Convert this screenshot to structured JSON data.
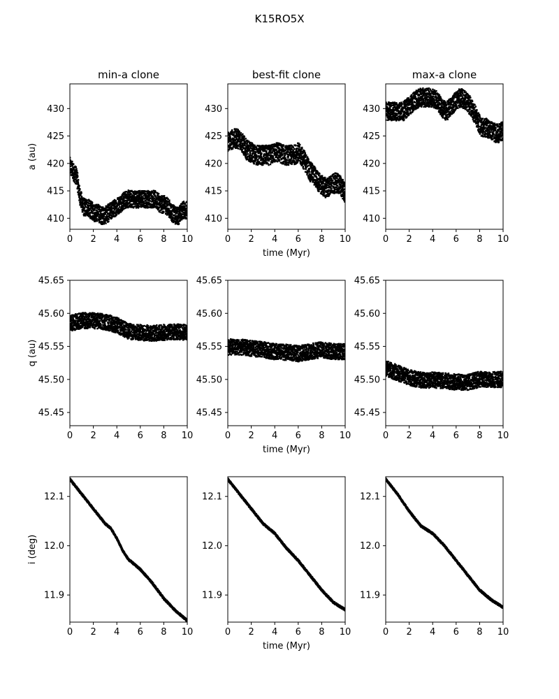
{
  "figure": {
    "suptitle": "K15RO5X"
  },
  "chart_data": [
    {
      "type": "scatter",
      "row": 0,
      "col": 0,
      "title": "min-a clone",
      "xlabel": "",
      "ylabel": "a (au)",
      "xlim": [
        0,
        10
      ],
      "ylim": [
        408,
        434.5
      ],
      "xticks": [
        0,
        2,
        4,
        6,
        8,
        10
      ],
      "yticks": [
        410,
        415,
        420,
        425,
        430
      ],
      "series": [
        {
          "x": [
            0,
            0.3,
            0.6,
            0.8,
            1.0,
            1.2,
            1.5,
            1.8,
            2.1,
            2.4,
            2.7,
            3.0,
            3.3,
            3.6,
            3.9,
            4.2,
            4.5,
            4.8,
            5.1,
            5.4,
            5.7,
            6.0,
            6.3,
            6.6,
            6.9,
            7.2,
            7.5,
            7.8,
            8.1,
            8.4,
            8.7,
            9.0,
            9.3,
            9.6,
            10.0
          ],
          "y": [
            419.5,
            418.5,
            417.5,
            414.5,
            413.0,
            412.0,
            412.0,
            411.5,
            411.0,
            411.0,
            410.5,
            410.5,
            411.0,
            411.5,
            412.0,
            412.5,
            413.0,
            413.5,
            413.5,
            413.5,
            413.5,
            413.5,
            413.5,
            413.5,
            413.5,
            413.5,
            413.0,
            412.5,
            412.5,
            412.0,
            411.0,
            410.5,
            410.5,
            411.5,
            411.5
          ],
          "spread": 1.6
        }
      ]
    },
    {
      "type": "scatter",
      "row": 0,
      "col": 1,
      "title": "best-fit clone",
      "xlabel": "time (Myr)",
      "ylabel": "",
      "xlim": [
        0,
        10
      ],
      "ylim": [
        408,
        434.5
      ],
      "xticks": [
        0,
        2,
        4,
        6,
        8,
        10
      ],
      "yticks": [
        410,
        415,
        420,
        425,
        430
      ],
      "series": [
        {
          "x": [
            0,
            0.5,
            1.0,
            1.3,
            1.6,
            2.0,
            2.4,
            2.8,
            3.2,
            3.6,
            4.0,
            4.4,
            4.8,
            5.2,
            5.6,
            6.0,
            6.4,
            6.8,
            7.0,
            7.3,
            7.6,
            8.0,
            8.4,
            8.8,
            9.2,
            9.6,
            10.0
          ],
          "y": [
            424.0,
            424.5,
            424.5,
            423.5,
            422.5,
            422.0,
            421.5,
            421.5,
            421.5,
            421.5,
            422.0,
            422.0,
            421.5,
            421.5,
            421.5,
            422.0,
            421.0,
            419.5,
            418.5,
            418.0,
            417.0,
            416.0,
            415.5,
            416.0,
            416.5,
            416.0,
            414.5
          ],
          "spread": 1.8
        }
      ]
    },
    {
      "type": "scatter",
      "row": 0,
      "col": 2,
      "title": "max-a clone",
      "xlabel": "",
      "ylabel": "",
      "xlim": [
        0,
        10
      ],
      "ylim": [
        408,
        434.5
      ],
      "xticks": [
        0,
        2,
        4,
        6,
        8,
        10
      ],
      "yticks": [
        410,
        415,
        420,
        425,
        430
      ],
      "series": [
        {
          "x": [
            0,
            0.5,
            1.0,
            1.5,
            2.0,
            2.5,
            3.0,
            3.5,
            4.0,
            4.4,
            4.8,
            5.2,
            5.6,
            6.0,
            6.4,
            6.8,
            7.2,
            7.6,
            7.9,
            8.2,
            8.6,
            9.0,
            9.4,
            9.7,
            10.0
          ],
          "y": [
            429.5,
            429.5,
            429.5,
            429.5,
            430.5,
            431.5,
            432.0,
            432.0,
            432.0,
            431.5,
            430.0,
            429.5,
            430.5,
            431.5,
            432.0,
            431.5,
            430.5,
            429.0,
            427.5,
            426.5,
            426.5,
            426.0,
            425.5,
            425.5,
            426.0
          ],
          "spread": 1.7
        }
      ]
    },
    {
      "type": "scatter",
      "row": 1,
      "col": 0,
      "title": "",
      "xlabel": "",
      "ylabel": "q (au)",
      "xlim": [
        0,
        10
      ],
      "ylim": [
        45.43,
        45.65
      ],
      "xticks": [
        0,
        2,
        4,
        6,
        8,
        10
      ],
      "yticks": [
        45.45,
        45.5,
        45.55,
        45.6,
        45.65
      ],
      "series": [
        {
          "x": [
            0,
            1.0,
            2.0,
            3.0,
            3.5,
            4.0,
            4.5,
            5.0,
            5.5,
            6.0,
            7.0,
            8.0,
            9.0,
            10.0
          ],
          "y": [
            45.585,
            45.589,
            45.589,
            45.587,
            45.585,
            45.582,
            45.577,
            45.573,
            45.571,
            45.571,
            45.57,
            45.571,
            45.572,
            45.571
          ],
          "spread": 0.012
        }
      ]
    },
    {
      "type": "scatter",
      "row": 1,
      "col": 1,
      "title": "",
      "xlabel": "time (Myr)",
      "ylabel": "",
      "xlim": [
        0,
        10
      ],
      "ylim": [
        45.43,
        45.65
      ],
      "xticks": [
        0,
        2,
        4,
        6,
        8,
        10
      ],
      "yticks": [
        45.45,
        45.5,
        45.55,
        45.6,
        45.65
      ],
      "series": [
        {
          "x": [
            0,
            1.0,
            2.0,
            3.0,
            4.0,
            5.0,
            6.0,
            7.0,
            8.0,
            9.0,
            10.0
          ],
          "y": [
            45.549,
            45.549,
            45.547,
            45.545,
            45.542,
            45.541,
            45.539,
            45.542,
            45.545,
            45.542,
            45.542
          ],
          "spread": 0.012
        }
      ]
    },
    {
      "type": "scatter",
      "row": 1,
      "col": 2,
      "title": "",
      "xlabel": "",
      "ylabel": "",
      "xlim": [
        0,
        10
      ],
      "ylim": [
        45.43,
        45.65
      ],
      "xticks": [
        0,
        2,
        4,
        6,
        8,
        10
      ],
      "yticks": [
        45.45,
        45.5,
        45.55,
        45.6,
        45.65
      ],
      "series": [
        {
          "x": [
            0,
            1.0,
            2.0,
            3.0,
            4.0,
            5.0,
            6.0,
            7.0,
            8.0,
            9.0,
            10.0
          ],
          "y": [
            45.517,
            45.51,
            45.503,
            45.499,
            45.499,
            45.498,
            45.496,
            45.496,
            45.5,
            45.5,
            45.5
          ],
          "spread": 0.012
        }
      ]
    },
    {
      "type": "scatter",
      "row": 2,
      "col": 0,
      "title": "",
      "xlabel": "",
      "ylabel": "i (deg)",
      "xlim": [
        0,
        10
      ],
      "ylim": [
        11.845,
        12.14
      ],
      "xticks": [
        0,
        2,
        4,
        6,
        8,
        10
      ],
      "yticks": [
        11.9,
        12.0,
        12.1
      ],
      "series": [
        {
          "x": [
            0,
            1.0,
            2.0,
            3.0,
            3.5,
            4.0,
            4.5,
            5.0,
            6.0,
            7.0,
            8.0,
            9.0,
            10.0
          ],
          "y": [
            12.135,
            12.105,
            12.075,
            12.045,
            12.035,
            12.015,
            11.99,
            11.972,
            11.952,
            11.925,
            11.893,
            11.868,
            11.848
          ],
          "spread": 0.002
        }
      ]
    },
    {
      "type": "scatter",
      "row": 2,
      "col": 1,
      "title": "",
      "xlabel": "time (Myr)",
      "ylabel": "",
      "xlim": [
        0,
        10
      ],
      "ylim": [
        11.845,
        12.14
      ],
      "xticks": [
        0,
        2,
        4,
        6,
        8,
        10
      ],
      "yticks": [
        11.9,
        12.0,
        12.1
      ],
      "series": [
        {
          "x": [
            0,
            1.0,
            2.0,
            3.0,
            4.0,
            5.0,
            6.0,
            7.0,
            8.0,
            9.0,
            10.0
          ],
          "y": [
            12.135,
            12.105,
            12.075,
            12.045,
            12.025,
            11.995,
            11.97,
            11.94,
            11.91,
            11.885,
            11.87
          ],
          "spread": 0.002
        }
      ]
    },
    {
      "type": "scatter",
      "row": 2,
      "col": 2,
      "title": "",
      "xlabel": "",
      "ylabel": "",
      "xlim": [
        0,
        10
      ],
      "ylim": [
        11.845,
        12.14
      ],
      "xticks": [
        0,
        2,
        4,
        6,
        8,
        10
      ],
      "yticks": [
        11.9,
        12.0,
        12.1
      ],
      "series": [
        {
          "x": [
            0,
            1.0,
            2.0,
            3.0,
            4.0,
            5.0,
            6.0,
            7.0,
            8.0,
            9.0,
            10.0
          ],
          "y": [
            12.135,
            12.105,
            12.07,
            12.04,
            12.025,
            12.0,
            11.97,
            11.94,
            11.91,
            11.89,
            11.875
          ],
          "spread": 0.002
        }
      ]
    }
  ]
}
